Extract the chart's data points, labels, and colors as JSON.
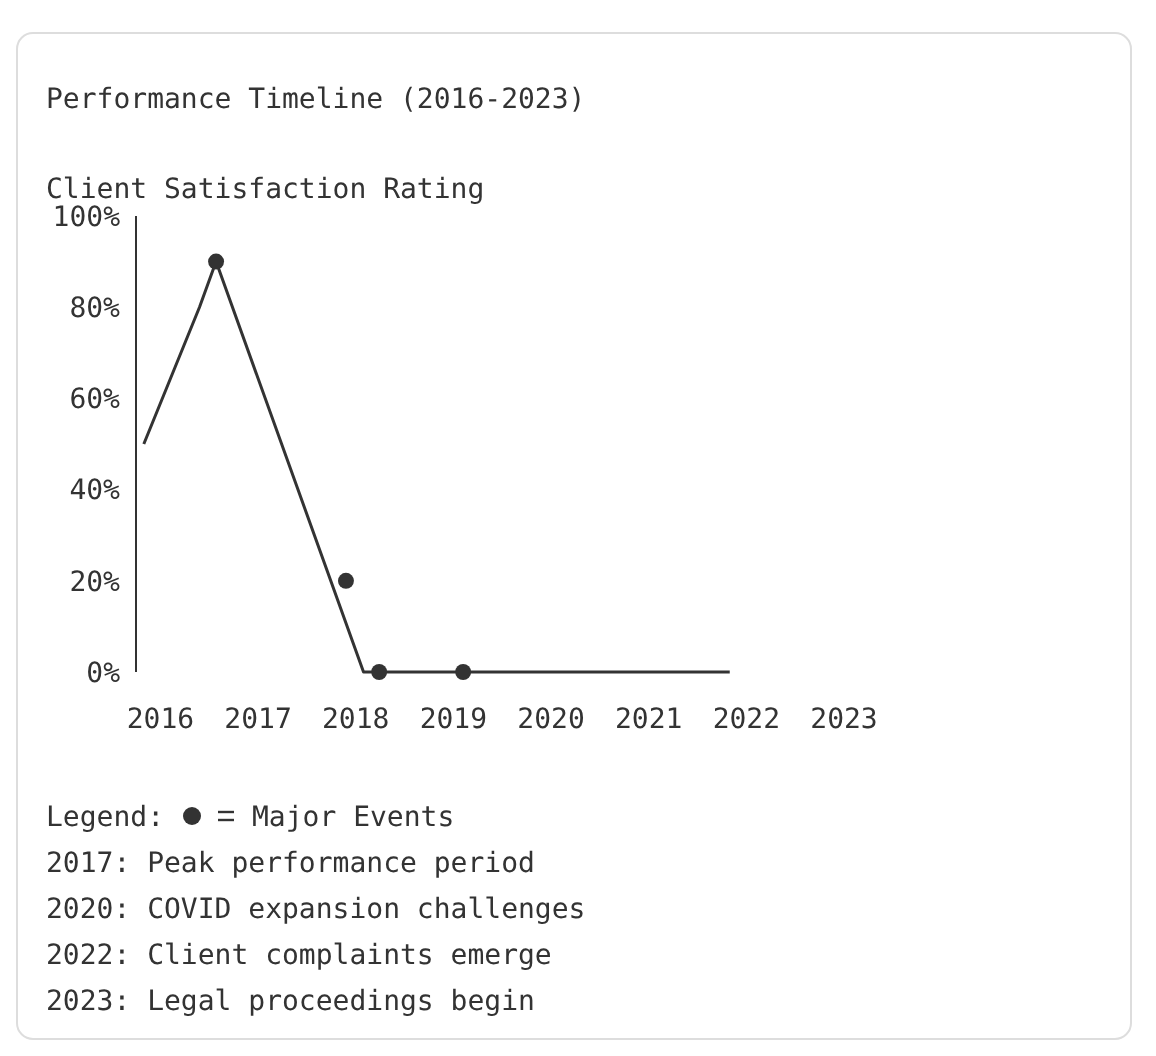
{
  "chart_data": {
    "type": "line",
    "title": "Performance Timeline (2016-2023)",
    "ylabel": "Client Satisfaction Rating",
    "xlim": [
      2015.75,
      2023
    ],
    "xticks": [
      2016,
      2017,
      2018,
      2019,
      2020,
      2021,
      2022,
      2023
    ],
    "ylim": [
      0,
      100
    ],
    "yticks": [
      {
        "value": 0,
        "label": "0%"
      },
      {
        "value": 20,
        "label": "20%"
      },
      {
        "value": 40,
        "label": "40%"
      },
      {
        "value": 60,
        "label": "60%"
      },
      {
        "value": 80,
        "label": "80%"
      },
      {
        "value": 100,
        "label": "100%"
      }
    ],
    "grid": false,
    "legend": "bottom",
    "legend_title": "Legend:",
    "line_style": "solid",
    "series": [
      {
        "color": "#333333",
        "x": [
          2015.83,
          2016.4,
          2016.57,
          2018.08,
          2021.83
        ],
        "values": [
          50,
          80,
          90,
          0,
          0
        ],
        "marker": "none"
      },
      {
        "type": "scatter",
        "name": "Major Events",
        "color": "#333333",
        "x": [
          2016.57,
          2017.9,
          2018.24,
          2019.1
        ],
        "values": [
          90,
          20,
          0,
          0
        ],
        "marker": "circle"
      }
    ],
    "annotations": [
      "2017: Peak performance period",
      "2020: COVID expansion challenges",
      "2022: Client complaints emerge",
      "2023: Legal proceedings begin"
    ]
  }
}
